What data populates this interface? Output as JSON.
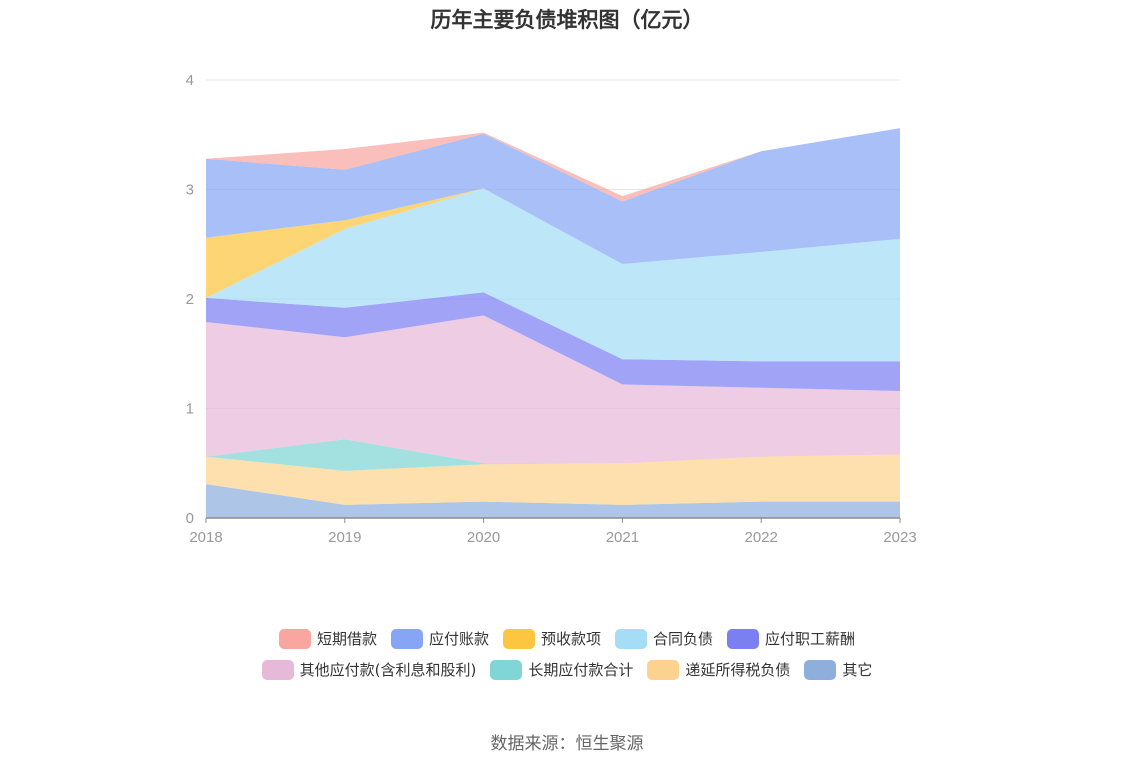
{
  "chart_data": {
    "type": "area",
    "stacked": true,
    "title": "历年主要负债堆积图（亿元）",
    "xlabel": "",
    "ylabel": "",
    "categories": [
      "2018",
      "2019",
      "2020",
      "2021",
      "2022",
      "2023"
    ],
    "ylim": [
      0,
      4
    ],
    "yticks": [
      "0",
      "1",
      "2",
      "3",
      "4"
    ],
    "grid": true,
    "legend_position": "bottom",
    "series": [
      {
        "name": "其它",
        "color": "#8eaedc",
        "values": [
          0.31,
          0.12,
          0.15,
          0.12,
          0.15,
          0.15
        ]
      },
      {
        "name": "递延所得税负债",
        "color": "#fdd28f",
        "values": [
          0.25,
          0.31,
          0.34,
          0.38,
          0.41,
          0.43
        ]
      },
      {
        "name": "长期应付款合计",
        "color": "#80d6d6",
        "values": [
          0.0,
          0.29,
          0.01,
          0.0,
          0.0,
          0.0
        ]
      },
      {
        "name": "其他应付款(含利息和股利)",
        "color": "#e6b9d9",
        "values": [
          1.23,
          0.93,
          1.35,
          0.72,
          0.63,
          0.58
        ]
      },
      {
        "name": "应付职工薪酬",
        "color": "#7b7ff2",
        "values": [
          0.22,
          0.27,
          0.21,
          0.23,
          0.24,
          0.27
        ]
      },
      {
        "name": "合同负债",
        "color": "#a5ddf6",
        "values": [
          0.0,
          0.72,
          0.95,
          0.87,
          1.0,
          1.12
        ]
      },
      {
        "name": "预收款项",
        "color": "#fdc540",
        "values": [
          0.55,
          0.08,
          0.0,
          0.0,
          0.0,
          0.0
        ]
      },
      {
        "name": "应付账款",
        "color": "#86a6f5",
        "values": [
          0.72,
          0.46,
          0.5,
          0.57,
          0.92,
          1.01
        ]
      },
      {
        "name": "短期借款",
        "color": "#f8a69f",
        "values": [
          0.0,
          0.19,
          0.01,
          0.05,
          0.0,
          0.0
        ]
      }
    ]
  },
  "legend": {
    "row1": [
      {
        "name": "短期借款",
        "color": "#f8a69f"
      },
      {
        "name": "应付账款",
        "color": "#86a6f5"
      },
      {
        "name": "预收款项",
        "color": "#fdc540"
      },
      {
        "name": "合同负债",
        "color": "#a5ddf6"
      },
      {
        "name": "应付职工薪酬",
        "color": "#7b7ff2"
      }
    ],
    "row2": [
      {
        "name": "其他应付款(含利息和股利)",
        "color": "#e6b9d9"
      },
      {
        "name": "长期应付款合计",
        "color": "#80d6d6"
      },
      {
        "name": "递延所得税负债",
        "color": "#fdd28f"
      },
      {
        "name": "其它",
        "color": "#8eaedc"
      }
    ]
  },
  "source": "数据来源：恒生聚源"
}
